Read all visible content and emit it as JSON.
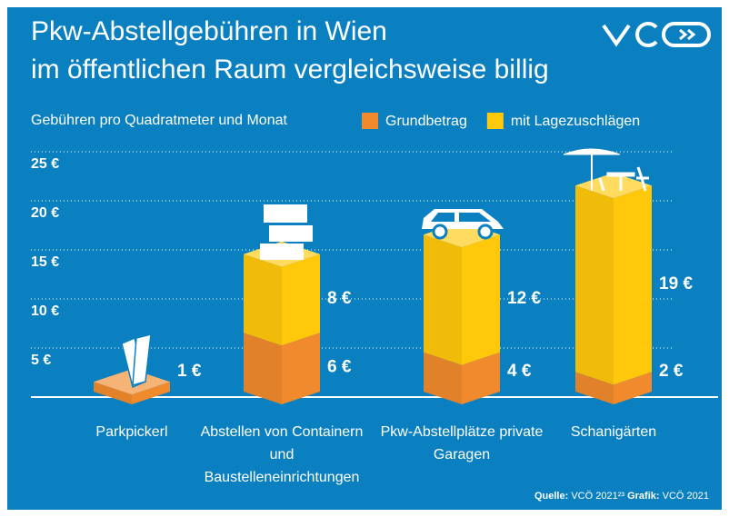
{
  "chart_data": {
    "type": "bar3d_stacked",
    "title": [
      "Pkw-Abstellgebühren in Wien",
      "im öffentlichen Raum vergleichsweise billig"
    ],
    "subtitle": "Gebühren pro Quadratmeter und Monat",
    "categories": [
      "Parkpickerl",
      "Abstellen von Containern und Baustelleneinrichtungen",
      "Pkw-Abstellplätze private Garagen",
      "Schanigärten"
    ],
    "series": [
      {
        "name": "Grundbetrag",
        "color": "#f08a2c",
        "values": [
          1,
          6,
          4,
          2
        ],
        "value_labels": [
          "1 €",
          "6 €",
          "4 €",
          "2 €"
        ]
      },
      {
        "name": "mit Lagezuschlägen",
        "color": "#ffc80a",
        "values": [
          null,
          8,
          12,
          19
        ],
        "value_labels": [
          null,
          "8 €",
          "12 €",
          "19 €"
        ]
      }
    ],
    "ylim": [
      0,
      25
    ],
    "yticks": [
      {
        "value": 5,
        "label": "5 €"
      },
      {
        "value": 10,
        "label": "10 €"
      },
      {
        "value": 15,
        "label": "15 €"
      },
      {
        "value": 20,
        "label": "20 €"
      },
      {
        "value": 25,
        "label": "25 €"
      }
    ],
    "grid": true,
    "source": {
      "label": "Quelle:",
      "text": "VCÖ 2021²³"
    },
    "credit": {
      "label": "Grafik:",
      "text": "VCÖ 2021"
    }
  }
}
